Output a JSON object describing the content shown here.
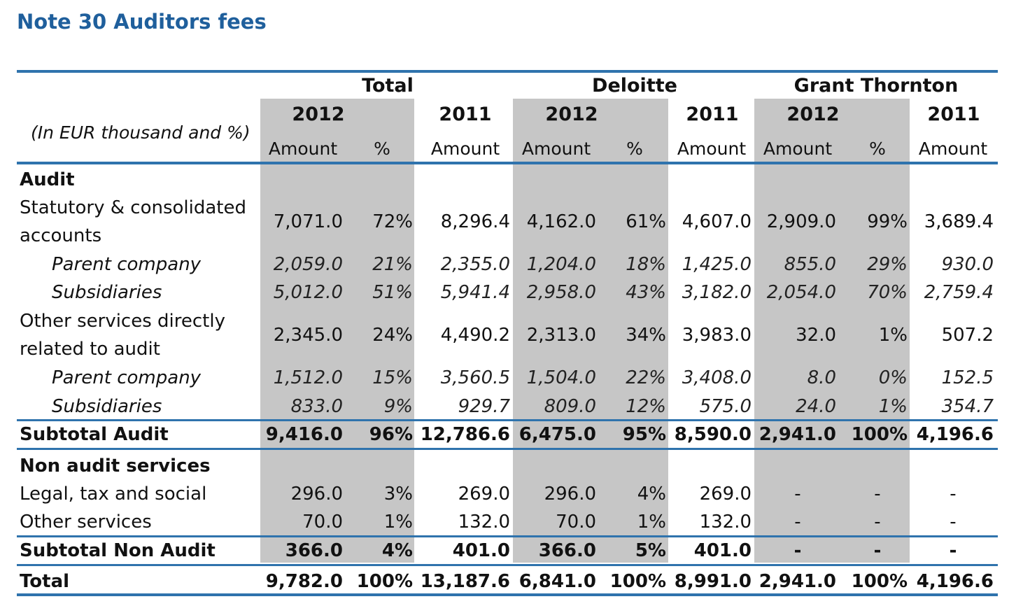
{
  "title": "Note 30 Auditors fees",
  "unit_label": "(In EUR thousand and %)",
  "groups": [
    "Total",
    "Deloitte",
    "Grant Thornton"
  ],
  "years": [
    "2012",
    "2011",
    "2012",
    "2011",
    "2012",
    "2011"
  ],
  "subheads": [
    "Amount",
    "%",
    "Amount",
    "Amount",
    "%",
    "Amount",
    "Amount",
    "%",
    "Amount"
  ],
  "rows": [
    {
      "label": "Audit",
      "style": "section",
      "values": []
    },
    {
      "label": "Statutory & consolidated\naccounts",
      "style": "normal",
      "values": [
        "7,071.0",
        "72%",
        "8,296.4",
        "4,162.0",
        "61%",
        "4,607.0",
        "2,909.0",
        "99%",
        "3,689.4"
      ]
    },
    {
      "label": "Parent company",
      "style": "italic",
      "values": [
        "2,059.0",
        "21%",
        "2,355.0",
        "1,204.0",
        "18%",
        "1,425.0",
        "855.0",
        "29%",
        "930.0"
      ]
    },
    {
      "label": "Subsidiaries",
      "style": "italic",
      "values": [
        "5,012.0",
        "51%",
        "5,941.4",
        "2,958.0",
        "43%",
        "3,182.0",
        "2,054.0",
        "70%",
        "2,759.4"
      ]
    },
    {
      "label": "Other services directly\nrelated to audit",
      "style": "normal",
      "values": [
        "2,345.0",
        "24%",
        "4,490.2",
        "2,313.0",
        "34%",
        "3,983.0",
        "32.0",
        "1%",
        "507.2"
      ]
    },
    {
      "label": "Parent company",
      "style": "italic",
      "values": [
        "1,512.0",
        "15%",
        "3,560.5",
        "1,504.0",
        "22%",
        "3,408.0",
        "8.0",
        "0%",
        "152.5"
      ]
    },
    {
      "label": "Subsidiaries",
      "style": "italic",
      "values": [
        "833.0",
        "9%",
        "929.7",
        "809.0",
        "12%",
        "575.0",
        "24.0",
        "1%",
        "354.7"
      ]
    },
    {
      "label": "Subtotal Audit",
      "style": "bold",
      "values": [
        "9,416.0",
        "96%",
        "12,786.6",
        "6,475.0",
        "95%",
        "8,590.0",
        "2,941.0",
        "100%",
        "4,196.6"
      ]
    },
    {
      "label": "Non audit services",
      "style": "section",
      "values": []
    },
    {
      "label": "Legal, tax and social",
      "style": "normal",
      "values": [
        "296.0",
        "3%",
        "269.0",
        "296.0",
        "4%",
        "269.0",
        "-",
        "-",
        "-"
      ]
    },
    {
      "label": "Other services",
      "style": "normal",
      "values": [
        "70.0",
        "1%",
        "132.0",
        "70.0",
        "1%",
        "132.0",
        "-",
        "-",
        "-"
      ]
    },
    {
      "label": "Subtotal Non Audit",
      "style": "bold",
      "values": [
        "366.0",
        "4%",
        "401.0",
        "366.0",
        "5%",
        "401.0",
        "-",
        "-",
        "-"
      ]
    },
    {
      "label": "Total",
      "style": "bold",
      "values": [
        "9,782.0",
        "100%",
        "13,187.6",
        "6,841.0",
        "100%",
        "8,991.0",
        "2,941.0",
        "100%",
        "4,196.6"
      ]
    }
  ]
}
